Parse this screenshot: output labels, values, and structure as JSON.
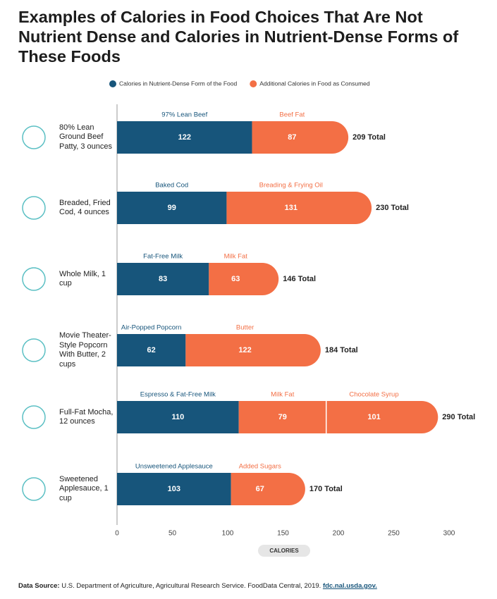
{
  "chart_data": {
    "type": "bar",
    "orientation": "horizontal",
    "stacked": true,
    "title": "Examples of Calories in Food Choices That Are Not Nutrient Dense and Calories in Nutrient-Dense Forms of These Foods",
    "legend": [
      {
        "name": "Calories in Nutrient-Dense Form of the Food",
        "color": "#17557b"
      },
      {
        "name": "Additional Calories in Food as Consumed",
        "color": "#f36f45"
      }
    ],
    "bars": [
      {
        "label": "80% Lean Ground Beef Patty, 3 ounces",
        "segments": [
          {
            "label": "97% Lean Beef",
            "value": 122
          },
          {
            "label": "Beef Fat",
            "value": 87
          }
        ],
        "total": 209,
        "total_label": "209 Total"
      },
      {
        "label": "Breaded, Fried Cod, 4 ounces",
        "segments": [
          {
            "label": "Baked Cod",
            "value": 99
          },
          {
            "label": "Breading & Frying Oil",
            "value": 131
          }
        ],
        "total": 230,
        "total_label": "230 Total"
      },
      {
        "label": "Whole Milk, 1 cup",
        "segments": [
          {
            "label": "Fat-Free Milk",
            "value": 83
          },
          {
            "label": "Milk Fat",
            "value": 63
          }
        ],
        "total": 146,
        "total_label": "146 Total"
      },
      {
        "label": "Movie Theater-Style Popcorn With Butter, 2 cups",
        "segments": [
          {
            "label": "Air-Popped Popcorn",
            "value": 62
          },
          {
            "label": "Butter",
            "value": 122
          }
        ],
        "total": 184,
        "total_label": "184 Total"
      },
      {
        "label": "Full-Fat Mocha, 12 ounces",
        "segments": [
          {
            "label": "Espresso & Fat-Free Milk",
            "value": 110
          },
          {
            "label": "Milk Fat",
            "value": 79
          },
          {
            "label": "Chocolate Syrup",
            "value": 101
          }
        ],
        "total": 290,
        "total_label": "290 Total"
      },
      {
        "label": "Sweetened Applesauce, 1 cup",
        "segments": [
          {
            "label": "Unsweetened Applesauce",
            "value": 103
          },
          {
            "label": "Added Sugars",
            "value": 67
          }
        ],
        "total": 170,
        "total_label": "170 Total"
      }
    ],
    "xlabel": "CALORIES",
    "xlim": [
      0,
      300
    ],
    "xticks": [
      0,
      50,
      100,
      150,
      200,
      250,
      300
    ],
    "source_label": "Data Source:",
    "source": "U.S. Department of Agriculture, Agricultural Research Service. FoodData Central, 2019.",
    "source_link": "fdc.nal.usda.gov."
  }
}
